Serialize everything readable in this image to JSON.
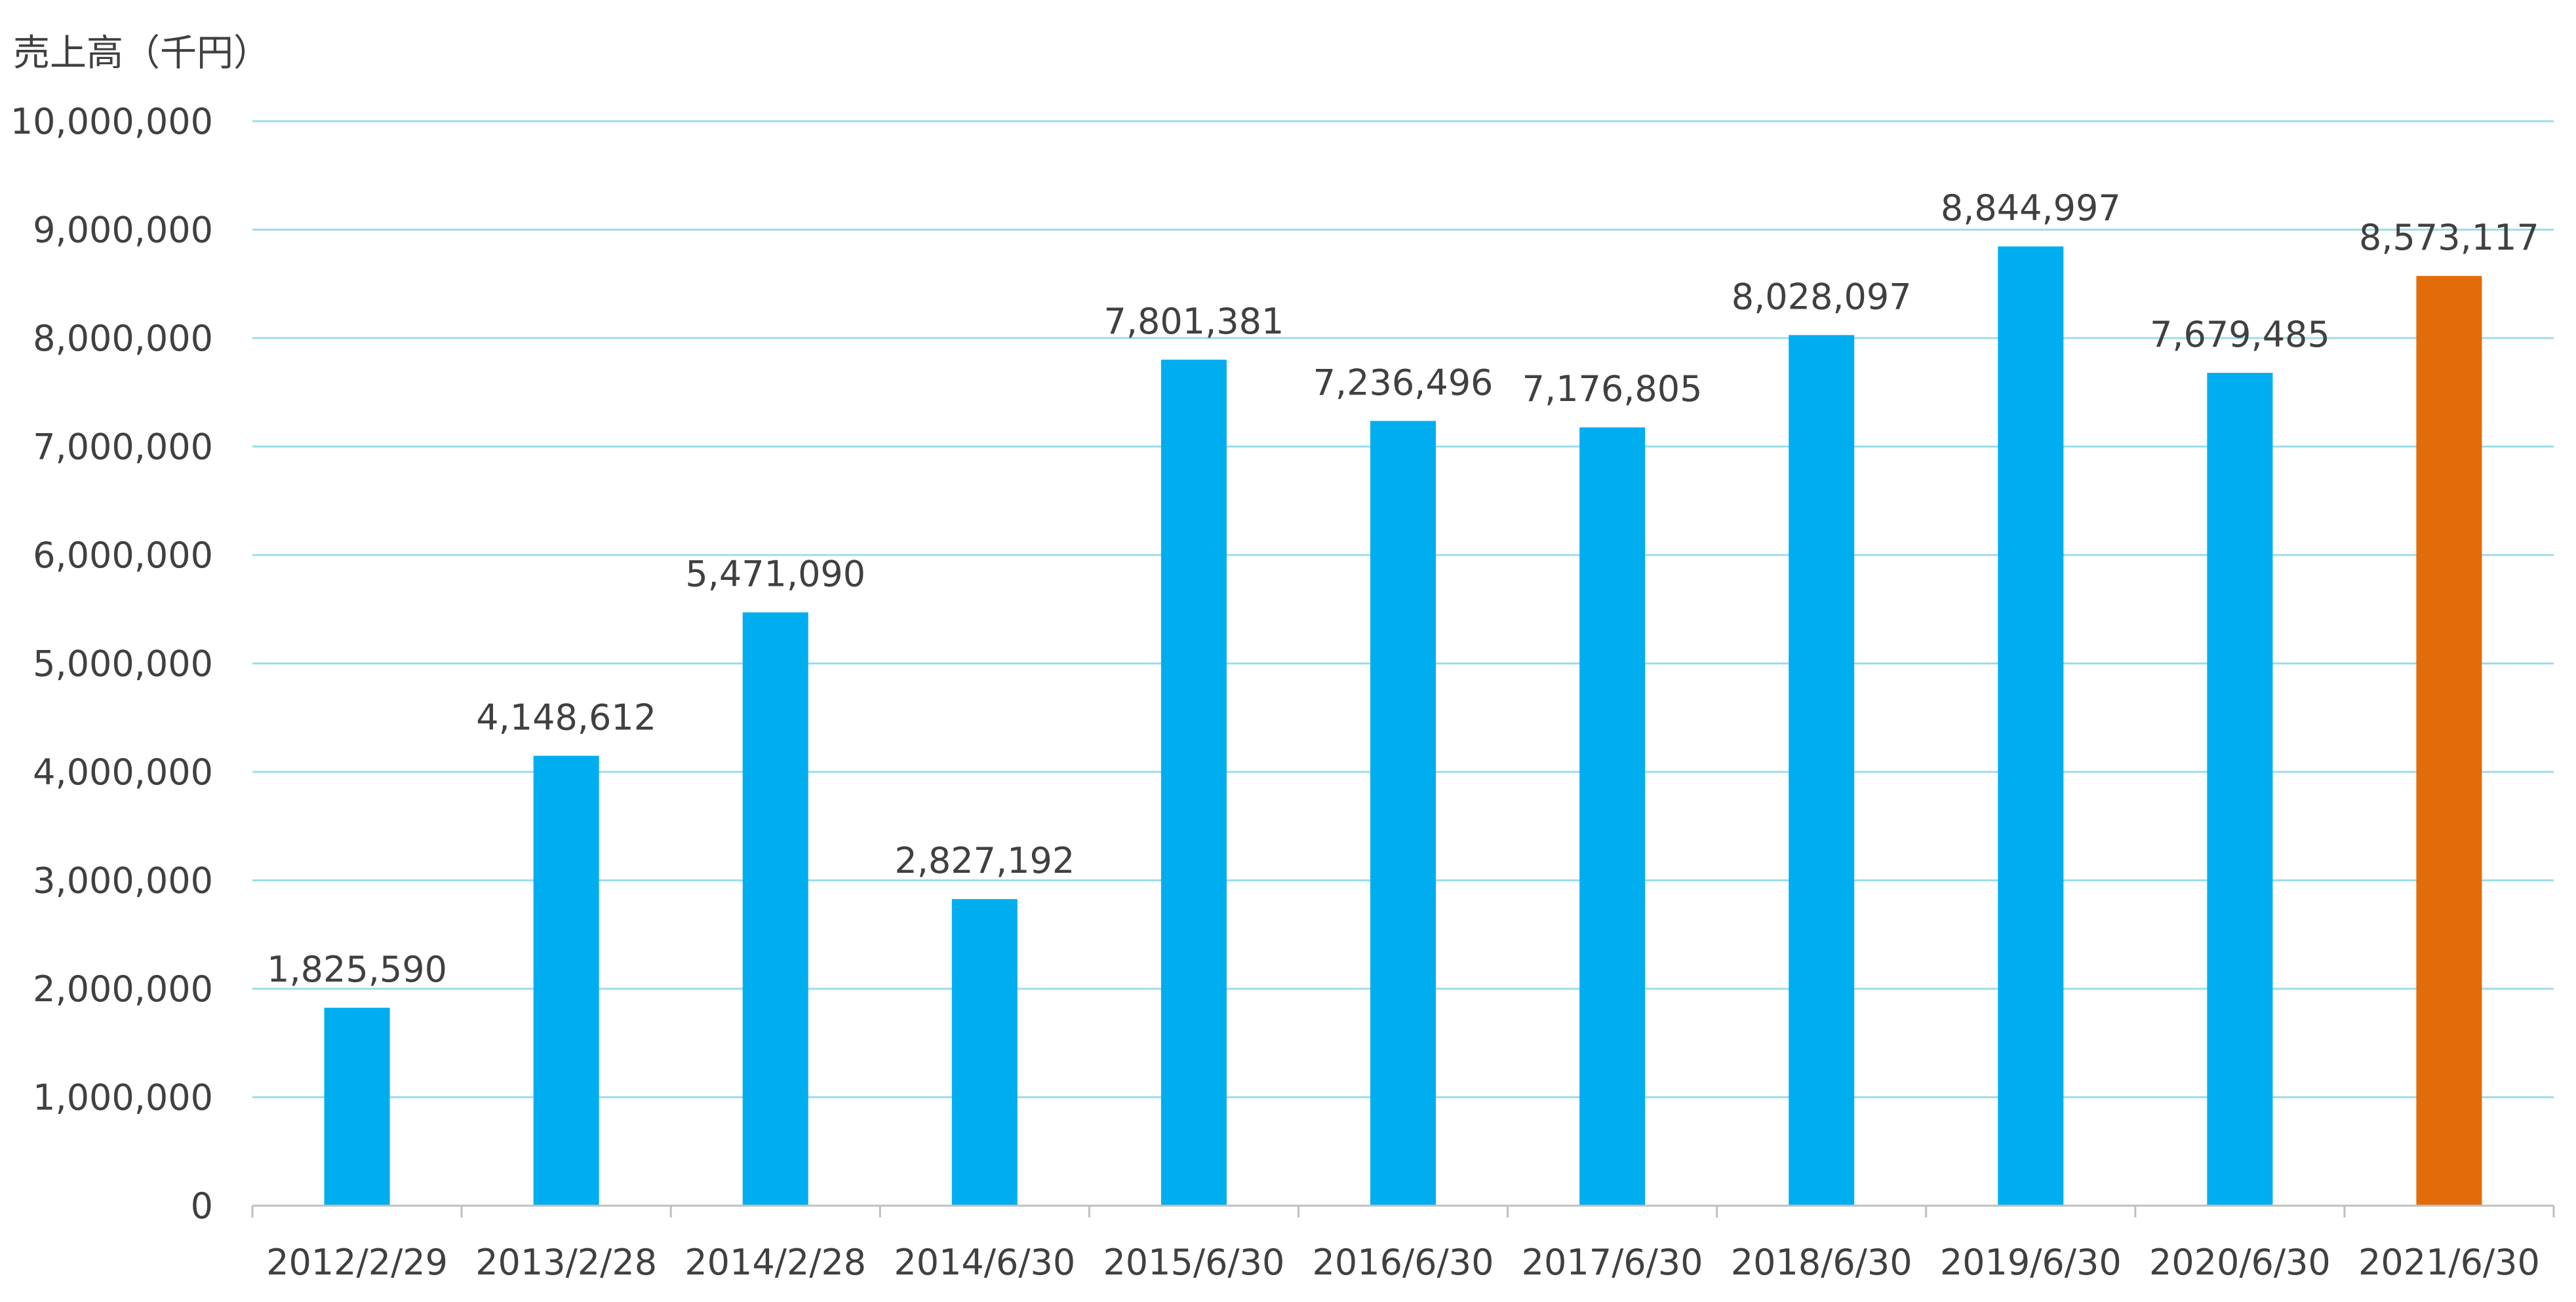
{
  "chart_data": {
    "type": "bar",
    "title": "",
    "ylabel": "売上高（千円）",
    "xlabel": "",
    "categories": [
      "2012/2/29",
      "2013/2/28",
      "2014/2/28",
      "2014/6/30",
      "2015/6/30",
      "2016/6/30",
      "2017/6/30",
      "2018/6/30",
      "2019/6/30",
      "2020/6/30",
      "2021/6/30"
    ],
    "values": [
      1825590,
      4148612,
      5471090,
      2827192,
      7801381,
      7236496,
      7176805,
      8028097,
      8844997,
      7679485,
      8573117
    ],
    "data_labels": [
      "1,825,590",
      "4,148,612",
      "5,471,090",
      "2,827,192",
      "7,801,381",
      "7,236,496",
      "7,176,805",
      "8,028,097",
      "8,844,997",
      "7,679,485",
      "8,573,117"
    ],
    "ylim": [
      0,
      10000000
    ],
    "yticks": [
      0,
      1000000,
      2000000,
      3000000,
      4000000,
      5000000,
      6000000,
      7000000,
      8000000,
      9000000,
      10000000
    ],
    "ytick_labels": [
      "0",
      "1,000,000",
      "2,000,000",
      "3,000,000",
      "4,000,000",
      "5,000,000",
      "6,000,000",
      "7,000,000",
      "8,000,000",
      "9,000,000",
      "10,000,000"
    ],
    "grid": true,
    "legend": "none",
    "colors": {
      "bar": "#00aeef",
      "highlight_bar": "#e36c0a",
      "grid": "#9ddde8",
      "axis": "#bfbfbf",
      "text": "#404040"
    },
    "highlight_index": 10
  }
}
